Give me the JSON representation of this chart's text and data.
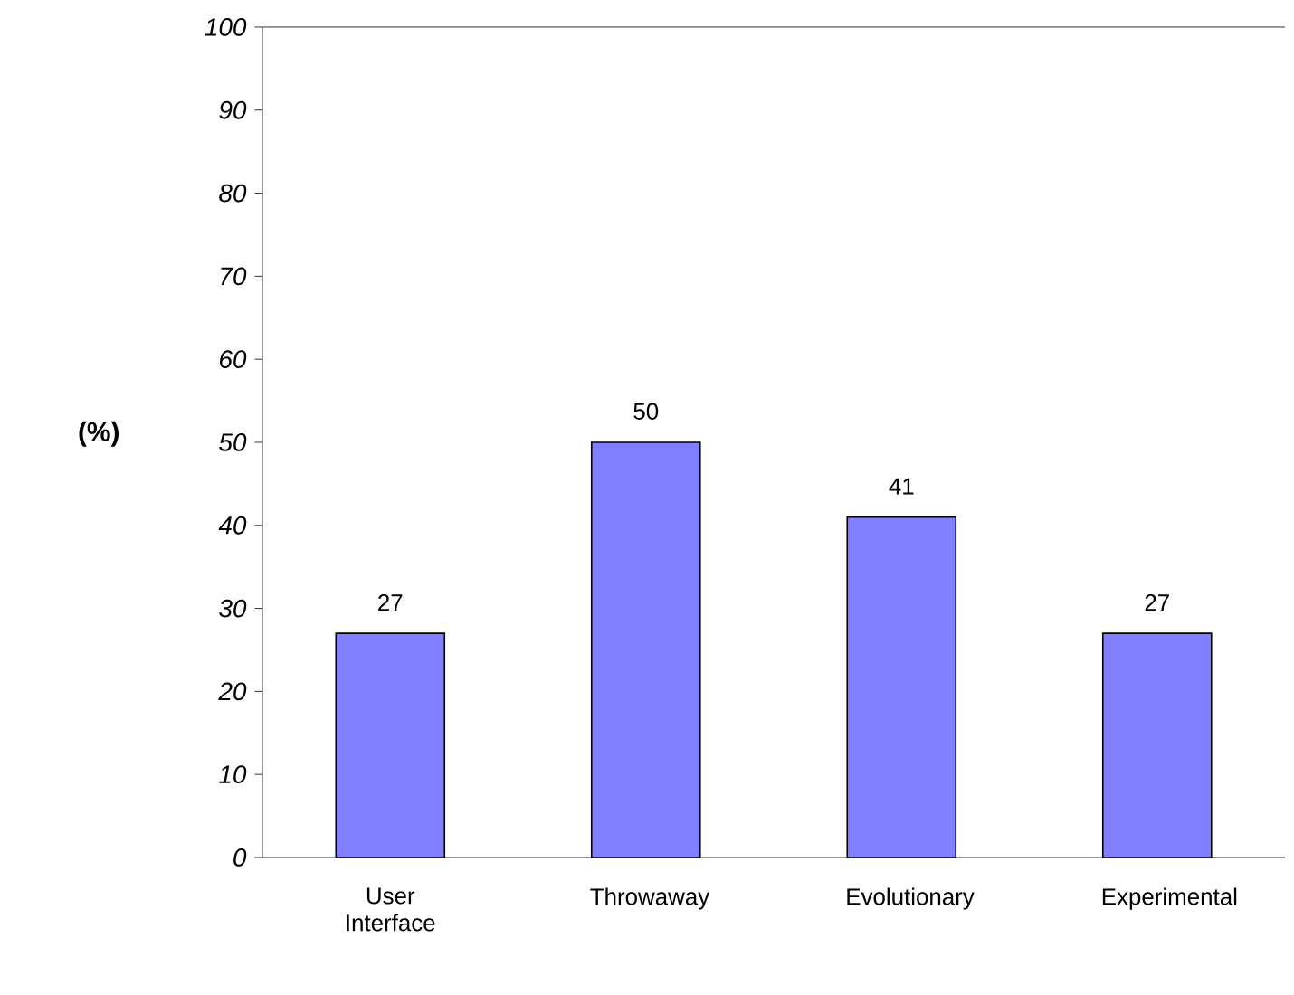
{
  "chart_data": {
    "type": "bar",
    "ylabel": "(%)",
    "categories": [
      "User Interface",
      "Throwaway",
      "Evolutionary",
      "Experimental"
    ],
    "values": [
      27,
      50,
      41,
      27
    ],
    "color": "#8080ff",
    "ylim": [
      0,
      100
    ],
    "yticks": [
      0,
      10,
      20,
      30,
      40,
      50,
      60,
      70,
      80,
      90,
      100
    ],
    "data_labels": true,
    "grid": false
  }
}
